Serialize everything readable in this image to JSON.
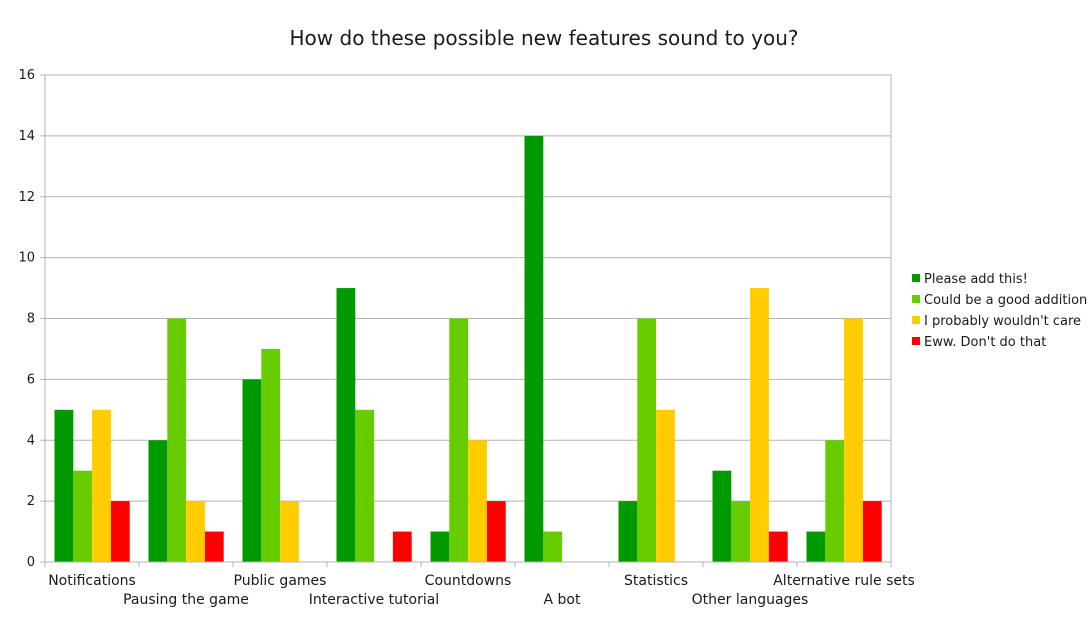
{
  "chart_data": {
    "type": "bar",
    "title": "How do these possible new features sound to you?",
    "xlabel": "",
    "ylabel": "",
    "ylim": [
      0,
      16
    ],
    "yticks": [
      0,
      2,
      4,
      6,
      8,
      10,
      12,
      14,
      16
    ],
    "grid": true,
    "legend_position": "right",
    "categories": [
      "Notifications",
      "Pausing the game",
      "Public games",
      "Interactive tutorial",
      "Countdowns",
      "A bot",
      "Statistics",
      "Other languages",
      "Alternative rule sets"
    ],
    "series": [
      {
        "name": "Please add this!",
        "color": "#009900",
        "values": [
          5,
          4,
          6,
          9,
          1,
          14,
          2,
          3,
          1
        ]
      },
      {
        "name": "Could be a good addition",
        "color": "#66cc00",
        "values": [
          3,
          8,
          7,
          5,
          8,
          1,
          8,
          2,
          4
        ]
      },
      {
        "name": "I probably wouldn't care",
        "color": "#ffcc00",
        "values": [
          5,
          2,
          2,
          0,
          4,
          0,
          5,
          9,
          8
        ]
      },
      {
        "name": "Eww. Don't do that",
        "color": "#ff0000",
        "values": [
          2,
          1,
          0,
          1,
          2,
          0,
          0,
          1,
          2
        ]
      }
    ]
  }
}
